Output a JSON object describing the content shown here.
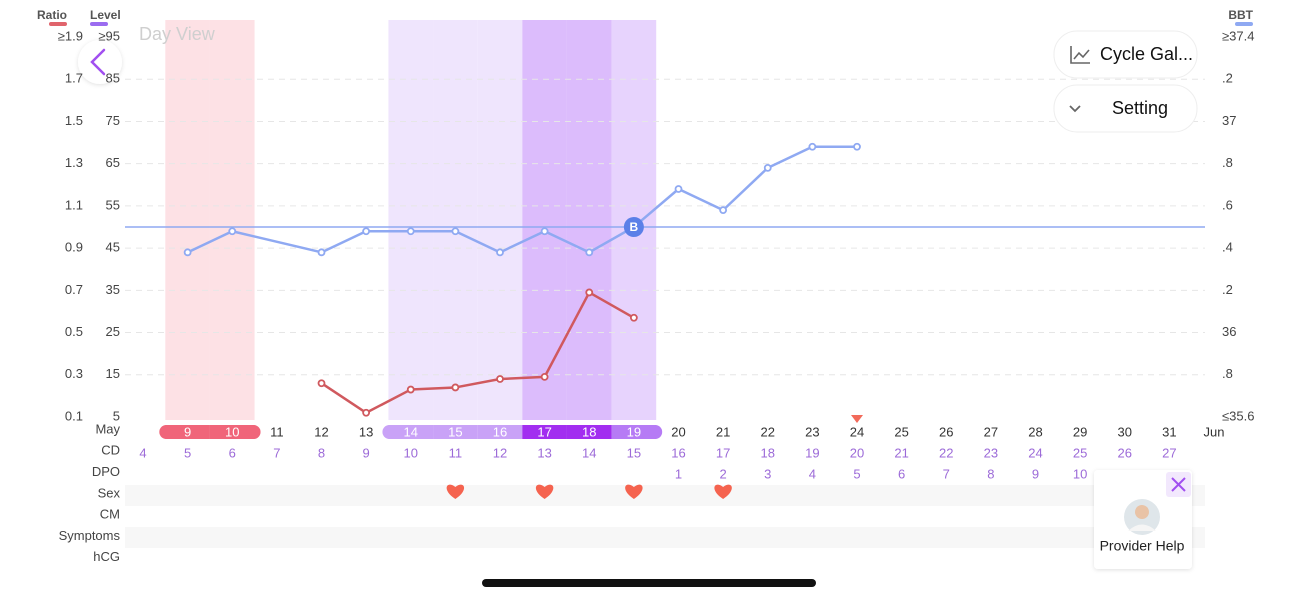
{
  "chart_data": {
    "type": "line",
    "axis_titles": {
      "left": "Ratio",
      "left_color": "#e0646c",
      "left2": "Level",
      "left2_color": "#9b6cf0",
      "right": "BBT",
      "right_color": "#8fa9f2"
    },
    "ylim": [
      0.1,
      1.9
    ],
    "yticks": [
      0.1,
      0.3,
      0.5,
      0.7,
      0.9,
      1.1,
      1.3,
      1.5,
      1.7,
      {
        "value": 1.9,
        "label": "≥1.9"
      }
    ],
    "y3lim": [
      5,
      95
    ],
    "y3ticks": [
      5,
      15,
      25,
      35,
      45,
      55,
      65,
      75,
      85,
      {
        "value": 95,
        "label": "≥95"
      }
    ],
    "y2lim": [
      35.6,
      37.4
    ],
    "y2ticks": [
      {
        "value": 35.6,
        "label": "≤35.6"
      },
      {
        "value": 35.8,
        "label": ".8"
      },
      36,
      {
        "value": 36.2,
        "label": ".2"
      },
      {
        "value": 36.4,
        "label": ".4"
      },
      {
        "value": 36.6,
        "label": ".6"
      },
      {
        "value": 36.8,
        "label": ".8"
      },
      37,
      {
        "value": 37.2,
        "label": ".2"
      },
      {
        "value": 37.4,
        "label": "≥37.4"
      }
    ],
    "grid": true,
    "row_labels": [
      "May",
      "CD",
      "DPO",
      "Sex",
      "CM",
      "Symptoms",
      "hCG"
    ],
    "categories": [
      null,
      "9",
      "10",
      "11",
      "12",
      "13",
      "14",
      "15",
      "16",
      "17",
      "18",
      "19",
      "20",
      "21",
      "22",
      "23",
      "24",
      "25",
      "26",
      "27",
      "28",
      "29",
      "30",
      "31",
      "Jun"
    ],
    "cd": [
      4,
      5,
      6,
      7,
      8,
      9,
      10,
      11,
      12,
      13,
      14,
      15,
      16,
      17,
      18,
      19,
      20,
      21,
      22,
      23,
      24,
      25,
      26,
      27,
      null
    ],
    "dpo": [
      null,
      null,
      null,
      null,
      null,
      null,
      null,
      null,
      null,
      null,
      null,
      null,
      1,
      2,
      3,
      4,
      5,
      6,
      7,
      8,
      9,
      10,
      null,
      null,
      null
    ],
    "period": [
      9,
      10
    ],
    "fertile_high": [
      14,
      15,
      16
    ],
    "fertile_peak": [
      17,
      18
    ],
    "ovulation": [
      19
    ],
    "sex": [
      15,
      17,
      19,
      21
    ],
    "coverline": 36.5,
    "series": [
      {
        "name": "BBT",
        "axis": "y2",
        "color": "#8fa9f2",
        "x": [
          9,
          10,
          12,
          13,
          14,
          15,
          16,
          17,
          18,
          19,
          20,
          21,
          22,
          23,
          24
        ],
        "values": [
          36.38,
          36.48,
          36.38,
          36.48,
          36.48,
          36.48,
          36.38,
          36.48,
          36.38,
          36.5,
          36.68,
          36.58,
          36.78,
          36.88,
          36.88
        ]
      },
      {
        "name": "Ratio",
        "axis": "y",
        "color": "#d0595e",
        "x": [
          12,
          13,
          14,
          15,
          16,
          17,
          18,
          19
        ],
        "values": [
          0.26,
          0.12,
          0.23,
          0.24,
          0.28,
          0.29,
          0.69,
          0.57
        ]
      }
    ],
    "annotations": [
      {
        "text": "B",
        "x": 19
      }
    ]
  },
  "ui": {
    "view_label": "Day View",
    "buttons": [
      "Cycle Gal...",
      "Setting"
    ],
    "provider_help": "Provider Help"
  }
}
